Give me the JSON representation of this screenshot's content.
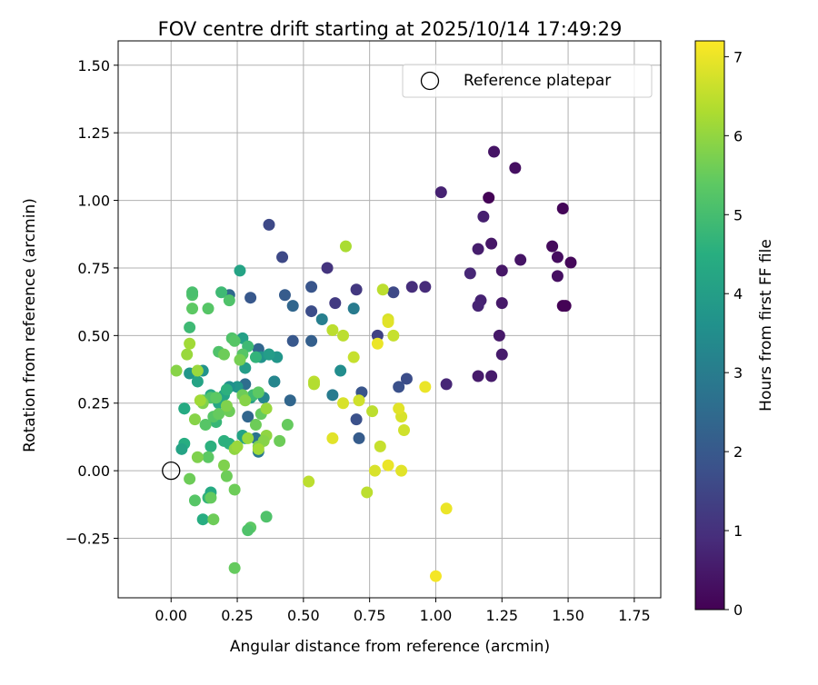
{
  "colors": {
    "grid": "#b0b0b0",
    "axis": "#000000",
    "marker_edge": "#000000",
    "legend_edge": "#cccccc"
  },
  "chart_data": {
    "type": "scatter",
    "title": "FOV centre drift starting at 2025/10/14 17:49:29",
    "xlabel": "Angular distance from reference (arcmin)",
    "ylabel": "Rotation from reference (arcmin)",
    "xlim": [
      -0.2,
      1.85
    ],
    "ylim": [
      -0.47,
      1.59
    ],
    "xticks": [
      0.0,
      0.25,
      0.5,
      0.75,
      1.0,
      1.25,
      1.5,
      1.75
    ],
    "xtick_labels": [
      "0.00",
      "0.25",
      "0.50",
      "0.75",
      "1.00",
      "1.25",
      "1.50",
      "1.75"
    ],
    "yticks": [
      -0.25,
      0.0,
      0.25,
      0.5,
      0.75,
      1.0,
      1.25,
      1.5
    ],
    "ytick_labels": [
      "−0.25",
      "0.00",
      "0.25",
      "0.50",
      "0.75",
      "1.00",
      "1.25",
      "1.50"
    ],
    "grid": true,
    "legend": {
      "position": "top-right",
      "entries": [
        {
          "label": "Reference platepar",
          "marker": "open-circle"
        }
      ]
    },
    "reference_point": {
      "x": 0.0,
      "y": 0.0
    },
    "colorbar": {
      "label": "Hours from first FF file",
      "range": [
        0,
        7.2
      ],
      "ticks": [
        0,
        1,
        2,
        3,
        4,
        5,
        6,
        7
      ],
      "tick_labels": [
        "0",
        "1",
        "2",
        "3",
        "4",
        "5",
        "6",
        "7"
      ],
      "colormap": "viridis"
    },
    "points": [
      {
        "x": 1.48,
        "y": 0.61,
        "h": 0.02
      },
      {
        "x": 1.49,
        "y": 0.61,
        "h": 0.05
      },
      {
        "x": 1.2,
        "y": 1.01,
        "h": 0.05
      },
      {
        "x": 1.48,
        "y": 0.97,
        "h": 0.1
      },
      {
        "x": 1.51,
        "y": 0.77,
        "h": 0.15
      },
      {
        "x": 1.44,
        "y": 0.83,
        "h": 0.2
      },
      {
        "x": 1.46,
        "y": 0.79,
        "h": 0.25
      },
      {
        "x": 1.46,
        "y": 0.72,
        "h": 0.3
      },
      {
        "x": 1.3,
        "y": 1.12,
        "h": 0.3
      },
      {
        "x": 1.22,
        "y": 1.18,
        "h": 0.4
      },
      {
        "x": 1.32,
        "y": 0.78,
        "h": 0.4
      },
      {
        "x": 1.25,
        "y": 0.74,
        "h": 0.45
      },
      {
        "x": 1.21,
        "y": 0.84,
        "h": 0.45
      },
      {
        "x": 1.25,
        "y": 0.62,
        "h": 0.5
      },
      {
        "x": 1.24,
        "y": 0.5,
        "h": 0.5
      },
      {
        "x": 1.25,
        "y": 0.43,
        "h": 0.55
      },
      {
        "x": 1.21,
        "y": 0.35,
        "h": 0.55
      },
      {
        "x": 1.16,
        "y": 0.35,
        "h": 0.55
      },
      {
        "x": 1.16,
        "y": 0.82,
        "h": 0.6
      },
      {
        "x": 1.18,
        "y": 0.94,
        "h": 0.65
      },
      {
        "x": 1.02,
        "y": 1.03,
        "h": 0.7
      },
      {
        "x": 1.17,
        "y": 0.63,
        "h": 0.7
      },
      {
        "x": 1.16,
        "y": 0.61,
        "h": 0.75
      },
      {
        "x": 1.13,
        "y": 0.73,
        "h": 0.8
      },
      {
        "x": 1.04,
        "y": 0.32,
        "h": 0.8
      },
      {
        "x": 0.96,
        "y": 0.68,
        "h": 0.9
      },
      {
        "x": 0.91,
        "y": 0.68,
        "h": 0.95
      },
      {
        "x": 0.59,
        "y": 0.75,
        "h": 1.1
      },
      {
        "x": 0.7,
        "y": 0.67,
        "h": 1.2
      },
      {
        "x": 0.62,
        "y": 0.62,
        "h": 1.25
      },
      {
        "x": 0.37,
        "y": 0.91,
        "h": 1.6
      },
      {
        "x": 0.42,
        "y": 0.79,
        "h": 1.6
      },
      {
        "x": 0.84,
        "y": 0.66,
        "h": 1.6
      },
      {
        "x": 0.78,
        "y": 0.5,
        "h": 1.4
      },
      {
        "x": 0.89,
        "y": 0.34,
        "h": 1.7
      },
      {
        "x": 0.86,
        "y": 0.31,
        "h": 1.8
      },
      {
        "x": 0.7,
        "y": 0.19,
        "h": 1.8
      },
      {
        "x": 0.72,
        "y": 0.29,
        "h": 1.9
      },
      {
        "x": 0.71,
        "y": 0.12,
        "h": 2.1
      },
      {
        "x": 0.53,
        "y": 0.59,
        "h": 1.7
      },
      {
        "x": 0.53,
        "y": 0.68,
        "h": 1.9
      },
      {
        "x": 0.46,
        "y": 0.48,
        "h": 2.0
      },
      {
        "x": 0.53,
        "y": 0.48,
        "h": 2.2
      },
      {
        "x": 0.43,
        "y": 0.65,
        "h": 2.1
      },
      {
        "x": 0.3,
        "y": 0.64,
        "h": 2.0
      },
      {
        "x": 0.45,
        "y": 0.26,
        "h": 2.4
      },
      {
        "x": 0.46,
        "y": 0.61,
        "h": 2.4
      },
      {
        "x": 0.39,
        "y": 0.33,
        "h": 2.5
      },
      {
        "x": 0.33,
        "y": 0.45,
        "h": 2.4
      },
      {
        "x": 0.29,
        "y": 0.2,
        "h": 2.4
      },
      {
        "x": 0.22,
        "y": 0.65,
        "h": 2.5
      },
      {
        "x": 0.28,
        "y": 0.32,
        "h": 2.6
      },
      {
        "x": 0.33,
        "y": 0.07,
        "h": 2.9
      },
      {
        "x": 0.32,
        "y": 0.12,
        "h": 2.8
      },
      {
        "x": 0.69,
        "y": 0.6,
        "h": 3.0
      },
      {
        "x": 0.57,
        "y": 0.56,
        "h": 3.1
      },
      {
        "x": 0.61,
        "y": 0.28,
        "h": 3.0
      },
      {
        "x": 0.64,
        "y": 0.37,
        "h": 3.5
      },
      {
        "x": 0.39,
        "y": 0.33,
        "h": 3.3
      },
      {
        "x": 0.37,
        "y": 0.43,
        "h": 3.6
      },
      {
        "x": 0.35,
        "y": 0.27,
        "h": 3.3
      },
      {
        "x": 0.26,
        "y": 0.74,
        "h": 4.2
      },
      {
        "x": 0.27,
        "y": 0.49,
        "h": 4.1
      },
      {
        "x": 0.34,
        "y": 0.42,
        "h": 3.7
      },
      {
        "x": 0.4,
        "y": 0.42,
        "h": 3.8
      },
      {
        "x": 0.37,
        "y": 0.43,
        "h": 4.0
      },
      {
        "x": 0.25,
        "y": 0.31,
        "h": 3.8
      },
      {
        "x": 0.22,
        "y": 0.31,
        "h": 3.6
      },
      {
        "x": 0.28,
        "y": 0.38,
        "h": 4.0
      },
      {
        "x": 0.3,
        "y": 0.27,
        "h": 4.0
      },
      {
        "x": 0.2,
        "y": 0.28,
        "h": 4.2
      },
      {
        "x": 0.18,
        "y": 0.25,
        "h": 4.3
      },
      {
        "x": 0.15,
        "y": 0.28,
        "h": 4.3
      },
      {
        "x": 0.12,
        "y": 0.37,
        "h": 3.7
      },
      {
        "x": 0.07,
        "y": 0.36,
        "h": 3.8
      },
      {
        "x": 0.1,
        "y": 0.33,
        "h": 4.2
      },
      {
        "x": 0.05,
        "y": 0.1,
        "h": 4.5
      },
      {
        "x": 0.04,
        "y": 0.08,
        "h": 4.2
      },
      {
        "x": 0.05,
        "y": 0.23,
        "h": 4.6
      },
      {
        "x": 0.05,
        "y": 0.23,
        "h": 4.4
      },
      {
        "x": 0.12,
        "y": -0.18,
        "h": 4.5
      },
      {
        "x": 0.14,
        "y": -0.1,
        "h": 4.7
      },
      {
        "x": 0.15,
        "y": -0.08,
        "h": 4.4
      },
      {
        "x": 0.15,
        "y": 0.09,
        "h": 4.6
      },
      {
        "x": 0.2,
        "y": 0.11,
        "h": 4.6
      },
      {
        "x": 0.22,
        "y": 0.1,
        "h": 4.6
      },
      {
        "x": 0.27,
        "y": 0.13,
        "h": 4.2
      },
      {
        "x": 0.28,
        "y": 0.12,
        "h": 4.1
      },
      {
        "x": 0.21,
        "y": 0.3,
        "h": 4.6
      },
      {
        "x": 0.17,
        "y": 0.18,
        "h": 4.8
      },
      {
        "x": 0.31,
        "y": 0.28,
        "h": 4.9
      },
      {
        "x": 0.32,
        "y": 0.42,
        "h": 4.7
      },
      {
        "x": 0.29,
        "y": 0.46,
        "h": 4.9
      },
      {
        "x": 0.07,
        "y": 0.53,
        "h": 4.9
      },
      {
        "x": 0.19,
        "y": 0.66,
        "h": 4.9
      },
      {
        "x": 0.08,
        "y": 0.65,
        "h": 5.2
      },
      {
        "x": 0.08,
        "y": 0.66,
        "h": 5.1
      },
      {
        "x": 0.22,
        "y": 0.63,
        "h": 5.2
      },
      {
        "x": 0.14,
        "y": 0.6,
        "h": 5.3
      },
      {
        "x": 0.08,
        "y": 0.6,
        "h": 5.4
      },
      {
        "x": 0.18,
        "y": 0.44,
        "h": 5.2
      },
      {
        "x": 0.23,
        "y": 0.49,
        "h": 5.2
      },
      {
        "x": 0.24,
        "y": 0.48,
        "h": 5.3
      },
      {
        "x": 0.27,
        "y": 0.43,
        "h": 5.3
      },
      {
        "x": 0.2,
        "y": 0.43,
        "h": 5.6
      },
      {
        "x": 0.26,
        "y": 0.41,
        "h": 5.7
      },
      {
        "x": 0.15,
        "y": 0.27,
        "h": 5.2
      },
      {
        "x": 0.17,
        "y": 0.27,
        "h": 5.4
      },
      {
        "x": 0.12,
        "y": 0.26,
        "h": 5.3
      },
      {
        "x": 0.12,
        "y": 0.25,
        "h": 5.8
      },
      {
        "x": 0.13,
        "y": 0.17,
        "h": 5.3
      },
      {
        "x": 0.16,
        "y": 0.2,
        "h": 5.3
      },
      {
        "x": 0.18,
        "y": 0.21,
        "h": 5.5
      },
      {
        "x": 0.22,
        "y": 0.22,
        "h": 5.6
      },
      {
        "x": 0.21,
        "y": 0.24,
        "h": 5.8
      },
      {
        "x": 0.27,
        "y": 0.28,
        "h": 5.6
      },
      {
        "x": 0.28,
        "y": 0.26,
        "h": 5.9
      },
      {
        "x": 0.33,
        "y": 0.29,
        "h": 5.4
      },
      {
        "x": 0.34,
        "y": 0.21,
        "h": 5.5
      },
      {
        "x": 0.36,
        "y": 0.23,
        "h": 6.1
      },
      {
        "x": 0.32,
        "y": 0.17,
        "h": 5.6
      },
      {
        "x": 0.33,
        "y": 0.09,
        "h": 5.8
      },
      {
        "x": 0.36,
        "y": 0.13,
        "h": 6.0
      },
      {
        "x": 0.35,
        "y": 0.11,
        "h": 5.9
      },
      {
        "x": 0.41,
        "y": 0.11,
        "h": 5.6
      },
      {
        "x": 0.44,
        "y": 0.17,
        "h": 5.5
      },
      {
        "x": 0.36,
        "y": -0.17,
        "h": 5.2
      },
      {
        "x": 0.3,
        "y": -0.21,
        "h": 5.4
      },
      {
        "x": 0.29,
        "y": -0.22,
        "h": 5.2
      },
      {
        "x": 0.24,
        "y": -0.36,
        "h": 5.5
      },
      {
        "x": 0.16,
        "y": -0.18,
        "h": 5.6
      },
      {
        "x": 0.24,
        "y": -0.07,
        "h": 5.6
      },
      {
        "x": 0.15,
        "y": -0.1,
        "h": 5.5
      },
      {
        "x": 0.09,
        "y": -0.11,
        "h": 5.3
      },
      {
        "x": 0.07,
        "y": -0.03,
        "h": 5.6
      },
      {
        "x": 0.21,
        "y": -0.02,
        "h": 5.6
      },
      {
        "x": 0.2,
        "y": 0.02,
        "h": 5.8
      },
      {
        "x": 0.14,
        "y": 0.05,
        "h": 5.4
      },
      {
        "x": 0.1,
        "y": 0.05,
        "h": 5.8
      },
      {
        "x": 0.09,
        "y": 0.19,
        "h": 5.9
      },
      {
        "x": 0.24,
        "y": 0.08,
        "h": 6.0
      },
      {
        "x": 0.25,
        "y": 0.09,
        "h": 6.1
      },
      {
        "x": 0.29,
        "y": 0.12,
        "h": 6.1
      },
      {
        "x": 0.33,
        "y": 0.08,
        "h": 6.2
      },
      {
        "x": 0.02,
        "y": 0.37,
        "h": 5.9
      },
      {
        "x": 0.06,
        "y": 0.43,
        "h": 6.1
      },
      {
        "x": 0.07,
        "y": 0.47,
        "h": 6.2
      },
      {
        "x": 0.1,
        "y": 0.37,
        "h": 6.1
      },
      {
        "x": 0.11,
        "y": 0.26,
        "h": 6.2
      },
      {
        "x": 0.52,
        "y": -0.04,
        "h": 6.5
      },
      {
        "x": 0.54,
        "y": 0.33,
        "h": 6.5
      },
      {
        "x": 0.54,
        "y": 0.32,
        "h": 6.4
      },
      {
        "x": 0.61,
        "y": 0.52,
        "h": 6.5
      },
      {
        "x": 0.65,
        "y": 0.5,
        "h": 6.5
      },
      {
        "x": 0.66,
        "y": 0.83,
        "h": 6.3
      },
      {
        "x": 0.69,
        "y": 0.42,
        "h": 6.6
      },
      {
        "x": 0.8,
        "y": 0.67,
        "h": 6.5
      },
      {
        "x": 0.71,
        "y": 0.26,
        "h": 6.7
      },
      {
        "x": 0.65,
        "y": 0.25,
        "h": 6.8
      },
      {
        "x": 0.61,
        "y": 0.12,
        "h": 6.9
      },
      {
        "x": 0.76,
        "y": 0.22,
        "h": 6.5
      },
      {
        "x": 0.79,
        "y": 0.09,
        "h": 6.6
      },
      {
        "x": 0.74,
        "y": -0.08,
        "h": 6.5
      },
      {
        "x": 0.77,
        "y": 0.0,
        "h": 6.8
      },
      {
        "x": 0.82,
        "y": 0.02,
        "h": 7.0
      },
      {
        "x": 0.87,
        "y": 0.0,
        "h": 6.9
      },
      {
        "x": 0.87,
        "y": 0.2,
        "h": 6.8
      },
      {
        "x": 0.86,
        "y": 0.23,
        "h": 6.9
      },
      {
        "x": 0.88,
        "y": 0.15,
        "h": 6.7
      },
      {
        "x": 0.82,
        "y": 0.56,
        "h": 6.8
      },
      {
        "x": 0.82,
        "y": 0.55,
        "h": 6.9
      },
      {
        "x": 0.84,
        "y": 0.5,
        "h": 6.6
      },
      {
        "x": 0.78,
        "y": 0.47,
        "h": 7.0
      },
      {
        "x": 0.96,
        "y": 0.31,
        "h": 7.0
      },
      {
        "x": 1.0,
        "y": -0.39,
        "h": 7.1
      },
      {
        "x": 1.04,
        "y": -0.14,
        "h": 7.0
      }
    ]
  }
}
